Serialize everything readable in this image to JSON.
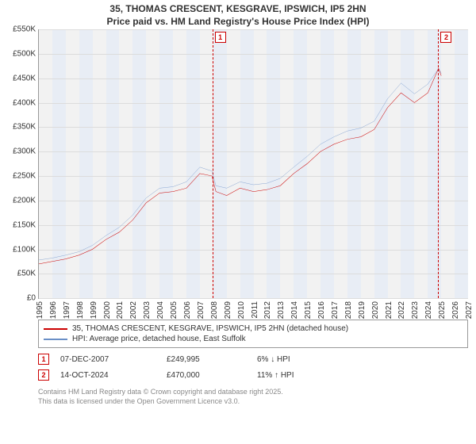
{
  "title_line1": "35, THOMAS CRESCENT, KESGRAVE, IPSWICH, IP5 2HN",
  "title_line2": "Price paid vs. HM Land Registry's House Price Index (HPI)",
  "chart": {
    "type": "line",
    "background_color": "#f2f2f2",
    "shade_color": "#e8edf5",
    "grid_color": "#dcdcdc",
    "xlim": [
      1995,
      2027
    ],
    "ylim": [
      0,
      550
    ],
    "ytick_step": 50,
    "ytick_prefix": "£",
    "ytick_suffix": "K",
    "xticks": [
      1995,
      1996,
      1997,
      1998,
      1999,
      2000,
      2001,
      2002,
      2003,
      2004,
      2005,
      2006,
      2007,
      2008,
      2009,
      2010,
      2011,
      2012,
      2013,
      2014,
      2015,
      2016,
      2017,
      2018,
      2019,
      2020,
      2021,
      2022,
      2023,
      2024,
      2025,
      2026,
      2027
    ],
    "series": [
      {
        "name": "price_paid",
        "label": "35, THOMAS CRESCENT, KESGRAVE, IPSWICH, IP5 2HN (detached house)",
        "color": "#cc0000",
        "width": 2,
        "points": [
          [
            1995,
            70
          ],
          [
            1996,
            75
          ],
          [
            1997,
            80
          ],
          [
            1998,
            88
          ],
          [
            1999,
            100
          ],
          [
            2000,
            120
          ],
          [
            2001,
            135
          ],
          [
            2002,
            160
          ],
          [
            2003,
            195
          ],
          [
            2004,
            215
          ],
          [
            2005,
            218
          ],
          [
            2006,
            225
          ],
          [
            2007,
            255
          ],
          [
            2007.9,
            250
          ],
          [
            2008.2,
            218
          ],
          [
            2009,
            210
          ],
          [
            2010,
            225
          ],
          [
            2011,
            218
          ],
          [
            2012,
            222
          ],
          [
            2013,
            230
          ],
          [
            2014,
            255
          ],
          [
            2015,
            275
          ],
          [
            2016,
            300
          ],
          [
            2017,
            315
          ],
          [
            2018,
            325
          ],
          [
            2019,
            330
          ],
          [
            2020,
            345
          ],
          [
            2021,
            390
          ],
          [
            2022,
            420
          ],
          [
            2023,
            400
          ],
          [
            2024,
            420
          ],
          [
            2024.8,
            470
          ],
          [
            2025,
            455
          ]
        ]
      },
      {
        "name": "hpi",
        "label": "HPI: Average price, detached house, East Suffolk",
        "color": "#6a8fc7",
        "width": 1.5,
        "points": [
          [
            1995,
            78
          ],
          [
            1996,
            82
          ],
          [
            1997,
            88
          ],
          [
            1998,
            95
          ],
          [
            1999,
            108
          ],
          [
            2000,
            128
          ],
          [
            2001,
            145
          ],
          [
            2002,
            170
          ],
          [
            2003,
            205
          ],
          [
            2004,
            225
          ],
          [
            2005,
            228
          ],
          [
            2006,
            238
          ],
          [
            2007,
            268
          ],
          [
            2007.9,
            260
          ],
          [
            2008.2,
            230
          ],
          [
            2009,
            225
          ],
          [
            2010,
            238
          ],
          [
            2011,
            232
          ],
          [
            2012,
            235
          ],
          [
            2013,
            245
          ],
          [
            2014,
            268
          ],
          [
            2015,
            290
          ],
          [
            2016,
            315
          ],
          [
            2017,
            330
          ],
          [
            2018,
            342
          ],
          [
            2019,
            348
          ],
          [
            2020,
            362
          ],
          [
            2021,
            408
          ],
          [
            2022,
            440
          ],
          [
            2023,
            418
          ],
          [
            2024,
            438
          ],
          [
            2024.8,
            470
          ],
          [
            2025,
            460
          ]
        ]
      }
    ],
    "markers": [
      {
        "id": "1",
        "x": 2007.93,
        "color": "#cc0000"
      },
      {
        "id": "2",
        "x": 2024.78,
        "color": "#cc0000"
      }
    ]
  },
  "legend": {
    "items": [
      {
        "color": "#cc0000",
        "label_key": "chart.series.0.label"
      },
      {
        "color": "#6a8fc7",
        "label_key": "chart.series.1.label"
      }
    ]
  },
  "events": [
    {
      "id": "1",
      "color": "#cc0000",
      "date": "07-DEC-2007",
      "price": "£249,995",
      "pct": "6% ↓ HPI"
    },
    {
      "id": "2",
      "color": "#cc0000",
      "date": "14-OCT-2024",
      "price": "£470,000",
      "pct": "11% ↑ HPI"
    }
  ],
  "footnote_line1": "Contains HM Land Registry data © Crown copyright and database right 2025.",
  "footnote_line2": "This data is licensed under the Open Government Licence v3.0."
}
